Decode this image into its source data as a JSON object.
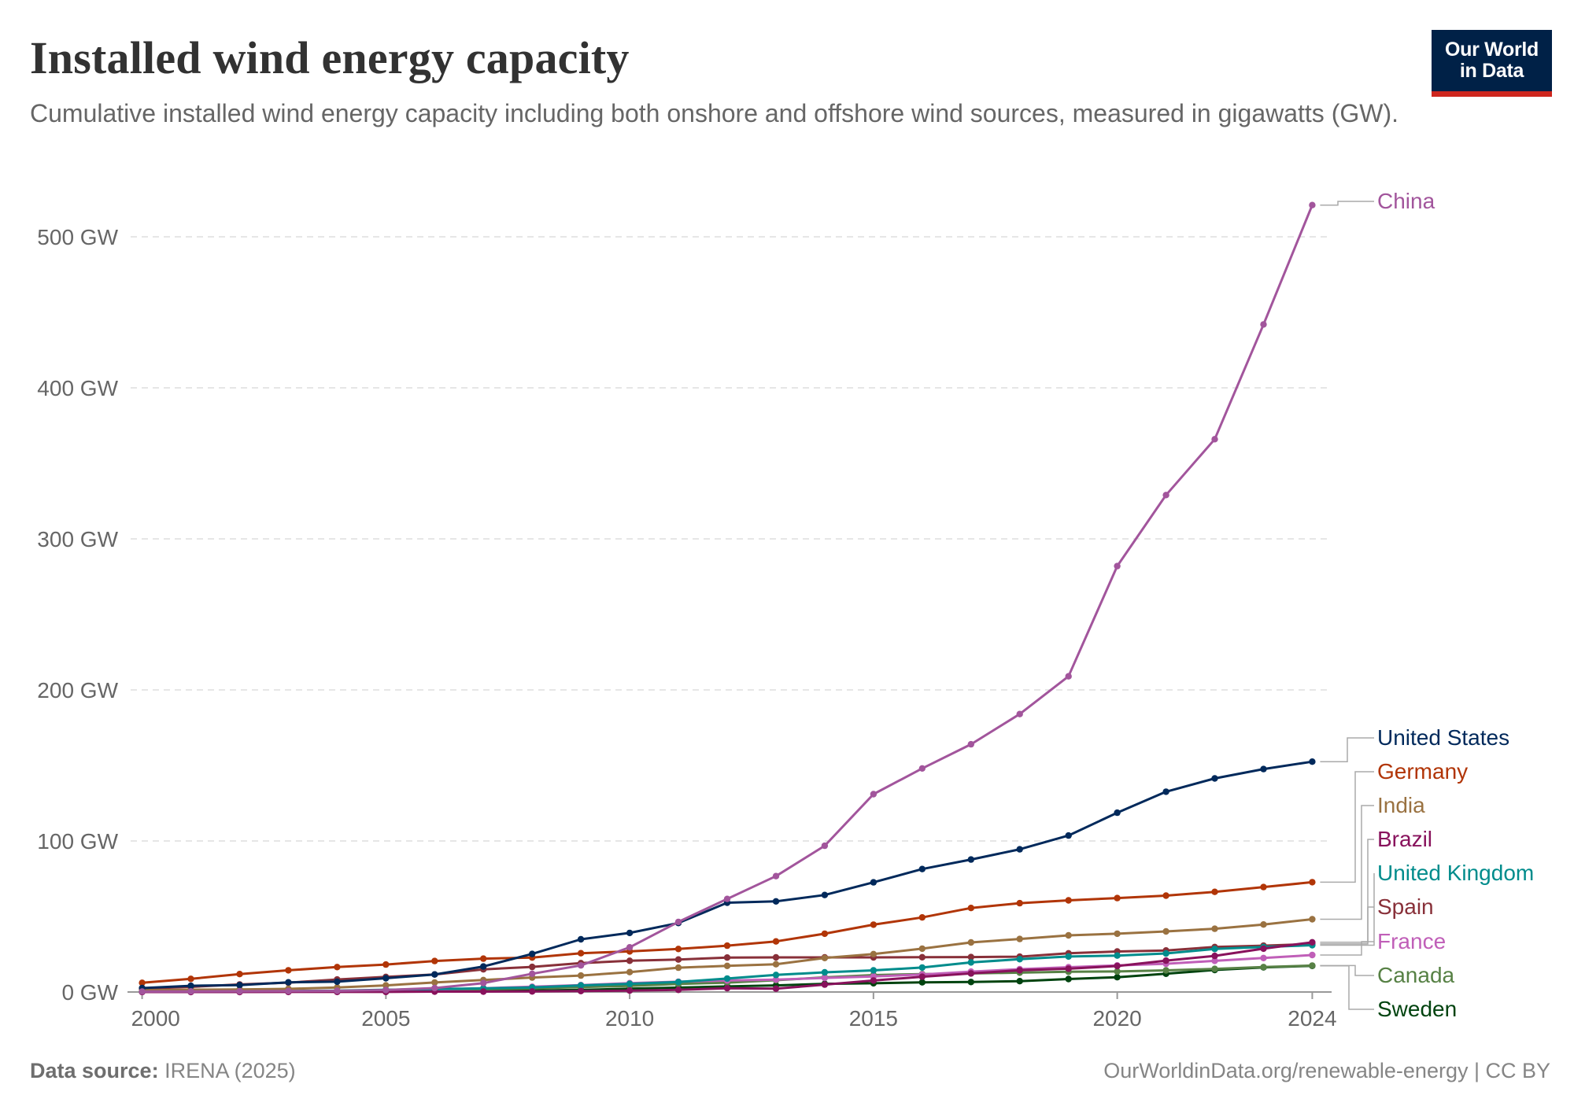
{
  "header": {
    "title": "Installed wind energy capacity",
    "subtitle": "Cumulative installed wind energy capacity including both onshore and offshore wind sources, measured in gigawatts (GW)."
  },
  "logo": {
    "line1": "Our World",
    "line2": "in Data",
    "bg_color": "#002147",
    "accent_color": "#ce261e"
  },
  "footer": {
    "source_label": "Data source:",
    "source_value": "IRENA (2025)",
    "url": "OurWorldinData.org/renewable-energy | CC BY"
  },
  "chart_data": {
    "type": "line",
    "title": "Installed wind energy capacity",
    "xlabel": "",
    "ylabel": "",
    "xlim": [
      1999.7,
      2024.3
    ],
    "ylim": [
      0,
      520
    ],
    "x_ticks": [
      2000,
      2005,
      2010,
      2015,
      2020,
      2024
    ],
    "x_tick_labels": [
      "2000",
      "2005",
      "2010",
      "2015",
      "2020",
      "2024"
    ],
    "y_ticks": [
      0,
      100,
      200,
      300,
      400,
      500
    ],
    "y_tick_labels": [
      "0 GW",
      "100 GW",
      "200 GW",
      "300 GW",
      "400 GW",
      "500 GW"
    ],
    "grid": "horizontal-dashed",
    "legend": "right-end-labels",
    "x": [
      2000,
      2001,
      2002,
      2003,
      2004,
      2005,
      2006,
      2007,
      2008,
      2009,
      2010,
      2011,
      2012,
      2013,
      2014,
      2015,
      2016,
      2017,
      2018,
      2019,
      2020,
      2021,
      2022,
      2023,
      2024
    ],
    "series": [
      {
        "name": "China",
        "color": "#a2559c",
        "values": [
          0.3,
          0.4,
          0.5,
          0.6,
          0.8,
          1.3,
          2.6,
          5.9,
          12.1,
          17.6,
          29.6,
          46.4,
          61.6,
          76.7,
          96.8,
          131.0,
          148.0,
          164.0,
          184.0,
          209.0,
          282.0,
          329.0,
          366.0,
          442.0,
          521.0
        ]
      },
      {
        "name": "United States",
        "color": "#00295b",
        "values": [
          2.6,
          4.1,
          4.6,
          6.4,
          6.8,
          9.1,
          11.6,
          16.9,
          25.2,
          34.9,
          39.1,
          45.7,
          59.1,
          60.0,
          64.2,
          72.6,
          81.4,
          87.7,
          94.5,
          103.6,
          118.7,
          132.6,
          141.4,
          147.6,
          152.5
        ]
      },
      {
        "name": "Germany",
        "color": "#b13507",
        "values": [
          6.1,
          8.7,
          11.9,
          14.4,
          16.5,
          18.2,
          20.5,
          22.1,
          22.8,
          25.7,
          26.9,
          28.5,
          30.7,
          33.5,
          38.6,
          44.6,
          49.4,
          55.6,
          58.8,
          60.7,
          62.2,
          63.8,
          66.3,
          69.5,
          72.7
        ]
      },
      {
        "name": "India",
        "color": "#9a7241",
        "values": [
          1.1,
          1.5,
          1.7,
          2.1,
          3.0,
          4.4,
          6.3,
          7.9,
          9.6,
          10.9,
          13.2,
          16.1,
          17.3,
          18.4,
          22.5,
          25.1,
          28.7,
          32.8,
          35.1,
          37.5,
          38.6,
          40.1,
          41.9,
          44.7,
          48.2
        ]
      },
      {
        "name": "Brazil",
        "color": "#88125c",
        "values": [
          0.02,
          0.02,
          0.02,
          0.03,
          0.03,
          0.03,
          0.24,
          0.25,
          0.34,
          0.6,
          0.93,
          1.43,
          2.5,
          2.2,
          4.9,
          7.6,
          10.1,
          12.3,
          14.4,
          15.4,
          17.2,
          20.8,
          23.9,
          28.7,
          32.9
        ]
      },
      {
        "name": "United Kingdom",
        "color": "#008c8c",
        "values": [
          0.4,
          0.5,
          0.5,
          0.7,
          0.9,
          1.5,
          2.0,
          2.4,
          3.0,
          4.4,
          5.4,
          6.6,
          8.9,
          11.3,
          13.0,
          14.3,
          16.2,
          19.6,
          21.7,
          23.5,
          24.1,
          25.5,
          28.5,
          29.8,
          31.0
        ]
      },
      {
        "name": "Spain",
        "color": "#883039",
        "values": [
          2.2,
          3.4,
          5.0,
          6.2,
          8.3,
          10.0,
          11.6,
          15.0,
          16.6,
          19.1,
          20.7,
          21.5,
          22.8,
          22.9,
          22.9,
          22.9,
          23.0,
          23.1,
          23.4,
          25.6,
          26.8,
          27.5,
          29.8,
          30.7,
          31.8
        ]
      },
      {
        "name": "France",
        "color": "#c05fb8",
        "values": [
          0.04,
          0.09,
          0.15,
          0.23,
          0.36,
          0.76,
          1.6,
          2.5,
          3.5,
          4.6,
          5.9,
          6.8,
          7.6,
          8.2,
          9.3,
          10.3,
          11.6,
          13.5,
          15.1,
          16.4,
          17.6,
          18.7,
          20.6,
          22.5,
          24.5
        ]
      },
      {
        "name": "Canada",
        "color": "#578145",
        "values": [
          0.1,
          0.2,
          0.2,
          0.3,
          0.4,
          0.6,
          1.5,
          1.8,
          2.4,
          3.3,
          4.0,
          5.3,
          6.2,
          7.8,
          9.7,
          11.2,
          11.9,
          12.3,
          12.8,
          13.4,
          13.6,
          14.3,
          15.3,
          16.5,
          17.5
        ]
      },
      {
        "name": "Sweden",
        "color": "#00430f",
        "values": [
          0.2,
          0.3,
          0.3,
          0.4,
          0.4,
          0.5,
          0.6,
          0.8,
          1.0,
          1.4,
          2.2,
          2.9,
          3.7,
          4.4,
          5.4,
          5.8,
          6.4,
          6.6,
          7.2,
          8.6,
          9.8,
          12.1,
          14.6,
          16.3,
          17.3
        ]
      }
    ]
  }
}
